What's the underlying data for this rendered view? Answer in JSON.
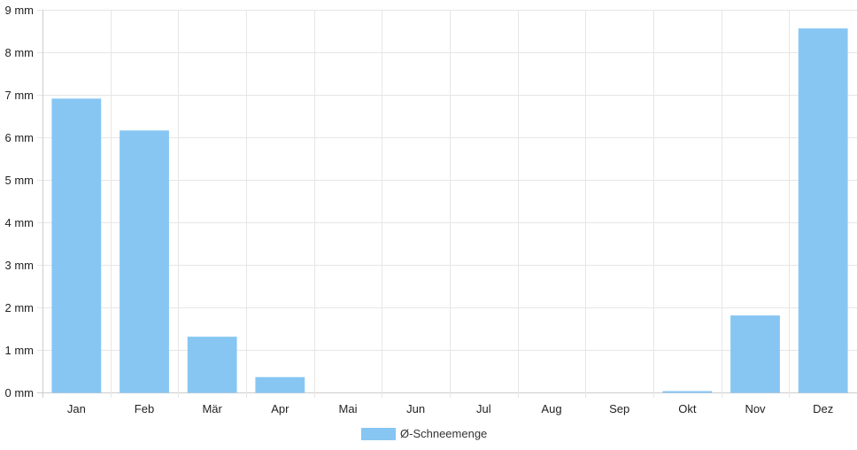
{
  "chart_data": {
    "type": "bar",
    "categories": [
      "Jan",
      "Feb",
      "Mär",
      "Apr",
      "Mai",
      "Jun",
      "Jul",
      "Aug",
      "Sep",
      "Okt",
      "Nov",
      "Dez"
    ],
    "series": [
      {
        "name": "Ø-Schneemenge",
        "values": [
          6.9,
          6.15,
          1.3,
          0.35,
          0,
          0,
          0,
          0,
          0,
          0.02,
          1.8,
          8.55
        ],
        "color": "#87c6f3"
      }
    ],
    "y_ticks": [
      "0 mm",
      "1 mm",
      "2 mm",
      "3 mm",
      "4 mm",
      "5 mm",
      "6 mm",
      "7 mm",
      "8 mm",
      "9 mm"
    ],
    "ylim": [
      0,
      9
    ],
    "grid": true,
    "legend_position": "bottom-center",
    "gridline_color": "#e6e6e6",
    "axis_color": "#cccccc"
  }
}
